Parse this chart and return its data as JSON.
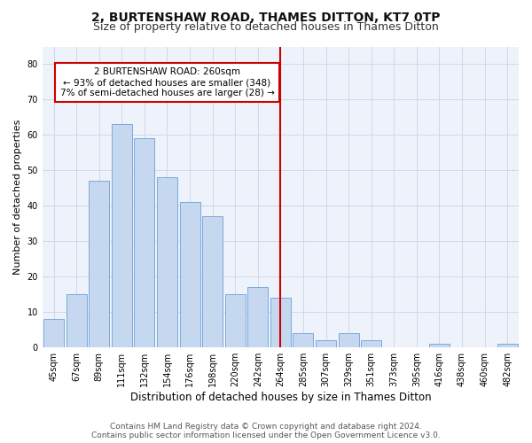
{
  "title": "2, BURTENSHAW ROAD, THAMES DITTON, KT7 0TP",
  "subtitle": "Size of property relative to detached houses in Thames Ditton",
  "xlabel": "Distribution of detached houses by size in Thames Ditton",
  "ylabel": "Number of detached properties",
  "bar_labels": [
    "45sqm",
    "67sqm",
    "89sqm",
    "111sqm",
    "132sqm",
    "154sqm",
    "176sqm",
    "198sqm",
    "220sqm",
    "242sqm",
    "264sqm",
    "285sqm",
    "307sqm",
    "329sqm",
    "351sqm",
    "373sqm",
    "395sqm",
    "416sqm",
    "438sqm",
    "460sqm",
    "482sqm"
  ],
  "bar_values": [
    8,
    15,
    47,
    63,
    59,
    48,
    41,
    37,
    15,
    17,
    14,
    4,
    2,
    4,
    2,
    0,
    0,
    1,
    0,
    0,
    1
  ],
  "bar_color": "#c5d8f0",
  "bar_edge_color": "#7aaadc",
  "vline_x": 10.0,
  "vline_color": "#cc0000",
  "annotation_line1": "2 BURTENSHAW ROAD: 260sqm",
  "annotation_line2": "← 93% of detached houses are smaller (348)",
  "annotation_line3": "7% of semi-detached houses are larger (28) →",
  "annotation_box_color": "#ffffff",
  "annotation_box_edge": "#cc0000",
  "ylim": [
    0,
    85
  ],
  "yticks": [
    0,
    10,
    20,
    30,
    40,
    50,
    60,
    70,
    80
  ],
  "grid_color": "#d0d8e8",
  "bg_color": "#eef2fa",
  "footer": "Contains HM Land Registry data © Crown copyright and database right 2024.\nContains public sector information licensed under the Open Government Licence v3.0.",
  "title_fontsize": 10,
  "subtitle_fontsize": 9,
  "xlabel_fontsize": 8.5,
  "ylabel_fontsize": 8,
  "tick_fontsize": 7,
  "annotation_fontsize": 7.5,
  "footer_fontsize": 6.5
}
